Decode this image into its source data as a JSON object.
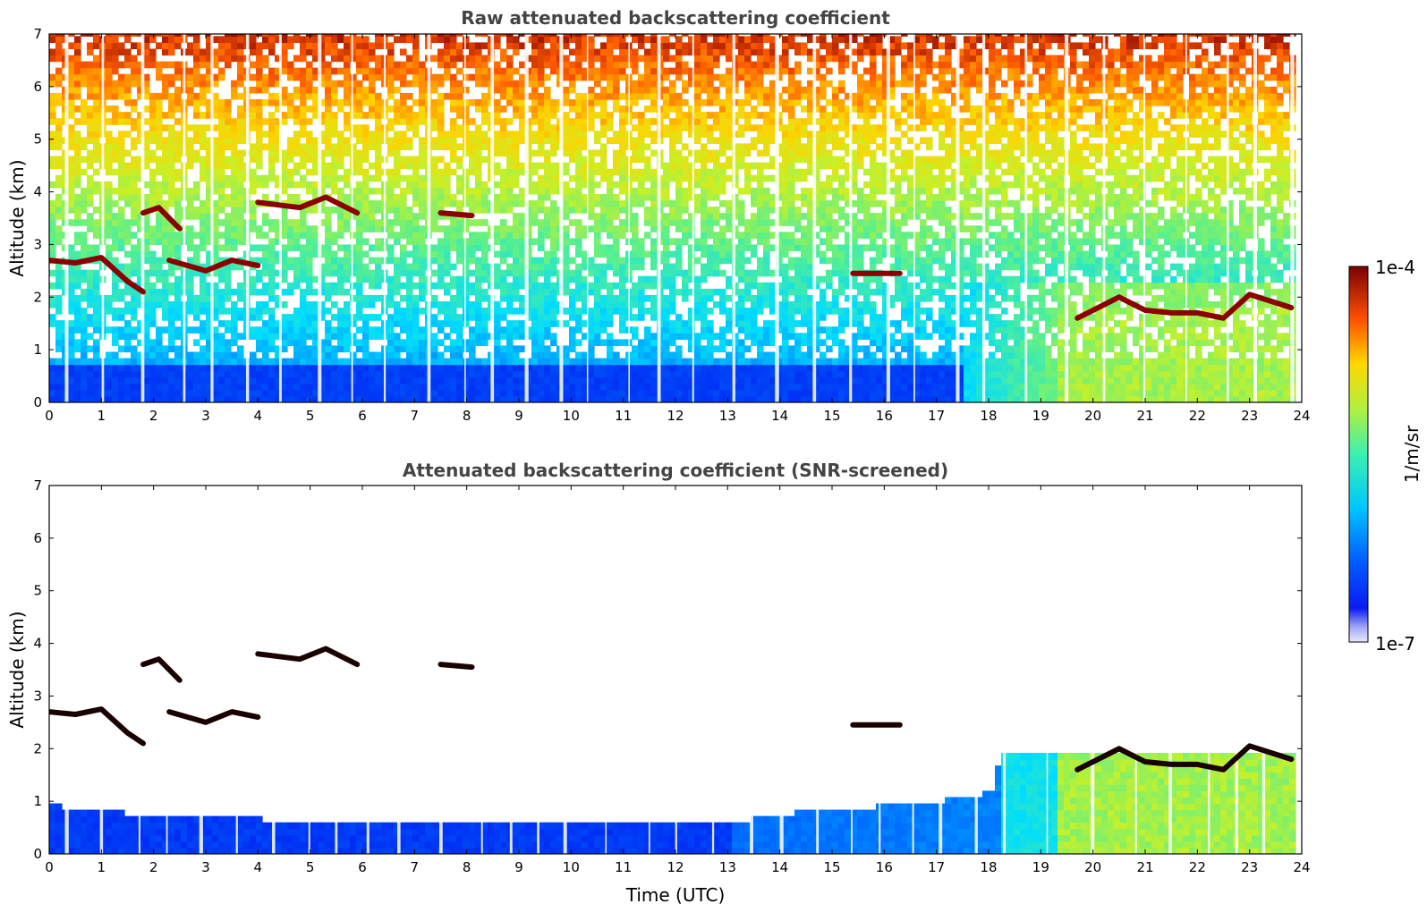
{
  "colorbar": {
    "label": "1/m/sr",
    "max_label": "1e-4",
    "min_label": "1e-7",
    "scale": "log",
    "range": [
      1e-07,
      0.0001
    ],
    "colormap": "jet"
  },
  "chart_data": [
    {
      "type": "heatmap",
      "title": "Raw attenuated backscattering coefficient",
      "xlabel": "",
      "ylabel": "Altitude (km)",
      "xlim": [
        0,
        24
      ],
      "ylim": [
        0,
        7
      ],
      "xticks": [
        "0",
        "1",
        "2",
        "3",
        "4",
        "5",
        "6",
        "7",
        "8",
        "9",
        "10",
        "11",
        "12",
        "13",
        "14",
        "15",
        "16",
        "17",
        "18",
        "19",
        "20",
        "21",
        "22",
        "23",
        "24"
      ],
      "yticks": [
        "0",
        "1",
        "2",
        "3",
        "4",
        "5",
        "6",
        "7"
      ],
      "data_until_hour": 23.8,
      "screened": false,
      "cloud_layers": [
        {
          "t": [
            0.0,
            0.5,
            1.0,
            1.5,
            1.8
          ],
          "alt_km": [
            2.7,
            2.65,
            2.75,
            2.3,
            2.1
          ]
        },
        {
          "t": [
            1.8,
            2.1,
            2.5
          ],
          "alt_km": [
            3.6,
            3.7,
            3.3
          ]
        },
        {
          "t": [
            2.3,
            3.0,
            3.5,
            4.0
          ],
          "alt_km": [
            2.7,
            2.5,
            2.7,
            2.6
          ]
        },
        {
          "t": [
            4.0,
            4.8,
            5.3,
            5.9
          ],
          "alt_km": [
            3.8,
            3.7,
            3.9,
            3.6
          ]
        },
        {
          "t": [
            7.5,
            8.1
          ],
          "alt_km": [
            3.6,
            3.55
          ]
        },
        {
          "t": [
            15.4,
            16.3
          ],
          "alt_km": [
            2.45,
            2.45
          ]
        },
        {
          "t": [
            19.7,
            20.5,
            21.0,
            21.5,
            22.0,
            22.5,
            23.0,
            23.8
          ],
          "alt_km": [
            1.6,
            2.0,
            1.75,
            1.7,
            1.7,
            1.6,
            2.05,
            1.8
          ]
        }
      ]
    },
    {
      "type": "heatmap",
      "title": "Attenuated backscattering coefficient (SNR-screened)",
      "xlabel": "Time (UTC)",
      "ylabel": "Altitude (km)",
      "xlim": [
        0,
        24
      ],
      "ylim": [
        0,
        7
      ],
      "xticks": [
        "0",
        "1",
        "2",
        "3",
        "4",
        "5",
        "6",
        "7",
        "8",
        "9",
        "10",
        "11",
        "12",
        "13",
        "14",
        "15",
        "16",
        "17",
        "18",
        "19",
        "20",
        "21",
        "22",
        "23",
        "24"
      ],
      "yticks": [
        "0",
        "1",
        "2",
        "3",
        "4",
        "5",
        "6",
        "7"
      ],
      "data_until_hour": 23.8,
      "screened": true,
      "boundary_layer_top_km": [
        [
          0,
          0.85
        ],
        [
          1,
          0.8
        ],
        [
          2,
          0.6
        ],
        [
          3,
          0.65
        ],
        [
          4,
          0.6
        ],
        [
          5,
          0.55
        ],
        [
          6,
          0.5
        ],
        [
          7,
          0.5
        ],
        [
          8,
          0.5
        ],
        [
          9,
          0.55
        ],
        [
          10,
          0.5
        ],
        [
          11,
          0.5
        ],
        [
          12,
          0.55
        ],
        [
          13,
          0.55
        ],
        [
          14,
          0.7
        ],
        [
          15,
          0.8
        ],
        [
          16,
          0.85
        ],
        [
          17,
          0.95
        ],
        [
          18,
          1.1
        ],
        [
          18.2,
          1.9
        ],
        [
          24,
          1.9
        ]
      ],
      "cloud_layers": [
        {
          "t": [
            0.0,
            0.5,
            1.0,
            1.5,
            1.8
          ],
          "alt_km": [
            2.7,
            2.65,
            2.75,
            2.3,
            2.1
          ]
        },
        {
          "t": [
            1.8,
            2.1,
            2.5
          ],
          "alt_km": [
            3.6,
            3.7,
            3.3
          ]
        },
        {
          "t": [
            2.3,
            3.0,
            3.5,
            4.0
          ],
          "alt_km": [
            2.7,
            2.5,
            2.7,
            2.6
          ]
        },
        {
          "t": [
            4.0,
            4.8,
            5.3,
            5.9
          ],
          "alt_km": [
            3.8,
            3.7,
            3.9,
            3.6
          ]
        },
        {
          "t": [
            7.5,
            8.1
          ],
          "alt_km": [
            3.6,
            3.55
          ]
        },
        {
          "t": [
            15.4,
            16.3
          ],
          "alt_km": [
            2.45,
            2.45
          ]
        },
        {
          "t": [
            19.7,
            20.5,
            21.0,
            21.5,
            22.0,
            22.5,
            23.0,
            23.8
          ],
          "alt_km": [
            1.6,
            2.0,
            1.75,
            1.7,
            1.7,
            1.6,
            2.05,
            1.8
          ]
        }
      ]
    }
  ]
}
